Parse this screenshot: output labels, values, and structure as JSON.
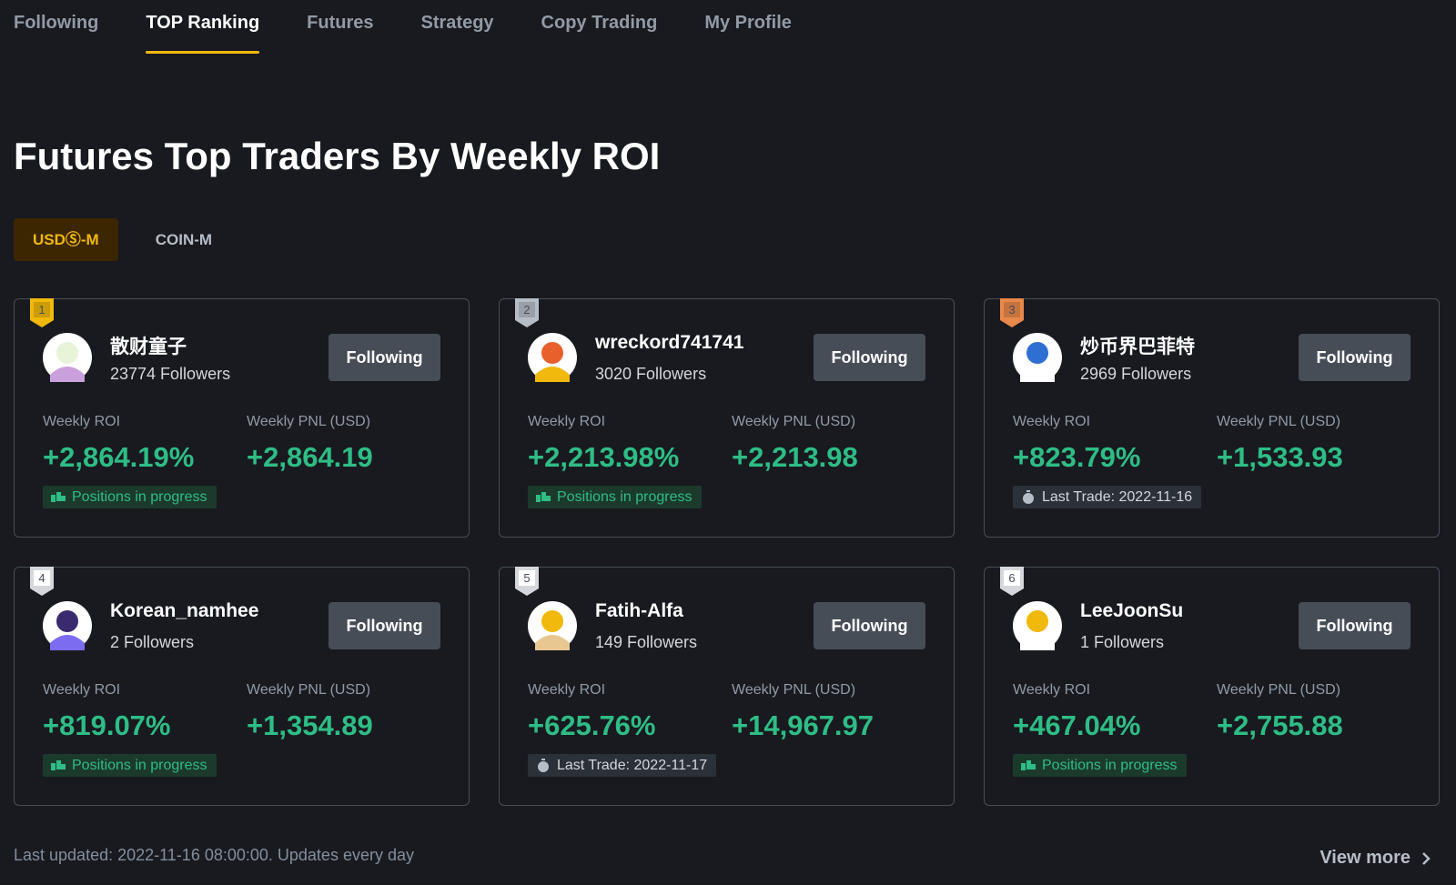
{
  "nav": {
    "tabs": [
      "Following",
      "TOP Ranking",
      "Futures",
      "Strategy",
      "Copy Trading",
      "My Profile"
    ],
    "active": 1
  },
  "page_title": "Futures Top Traders By Weekly ROI",
  "toggle": {
    "options": [
      "USDⓈ-M",
      "COIN-M"
    ],
    "active": 0
  },
  "labels": {
    "roi": "Weekly ROI",
    "pnl": "Weekly PNL (USD)",
    "button": "Following"
  },
  "cards": [
    {
      "rank": "1",
      "name": "散财童子",
      "followers": "23774 Followers",
      "roi": "+2,864.19%",
      "pnl": "+2,864.19",
      "status": {
        "kind": "positions",
        "text": "Positions in progress"
      }
    },
    {
      "rank": "2",
      "name": "wreckord741741",
      "followers": "3020 Followers",
      "roi": "+2,213.98%",
      "pnl": "+2,213.98",
      "status": {
        "kind": "positions",
        "text": "Positions in progress"
      }
    },
    {
      "rank": "3",
      "name": "炒币界巴菲特",
      "followers": "2969 Followers",
      "roi": "+823.79%",
      "pnl": "+1,533.93",
      "status": {
        "kind": "last_trade",
        "text": "Last Trade: 2022-11-16"
      }
    },
    {
      "rank": "4",
      "name": "Korean_namhee",
      "followers": "2 Followers",
      "roi": "+819.07%",
      "pnl": "+1,354.89",
      "status": {
        "kind": "positions",
        "text": "Positions in progress"
      }
    },
    {
      "rank": "5",
      "name": "Fatih-Alfa",
      "followers": "149 Followers",
      "roi": "+625.76%",
      "pnl": "+14,967.97",
      "status": {
        "kind": "last_trade",
        "text": "Last Trade: 2022-11-17"
      }
    },
    {
      "rank": "6",
      "name": "LeeJoonSu",
      "followers": "1 Followers",
      "roi": "+467.04%",
      "pnl": "+2,755.88",
      "status": {
        "kind": "positions",
        "text": "Positions in progress"
      }
    }
  ],
  "footer": {
    "updated": "Last updated: 2022-11-16 08:00:00. Updates every day",
    "view_more": "View more"
  }
}
